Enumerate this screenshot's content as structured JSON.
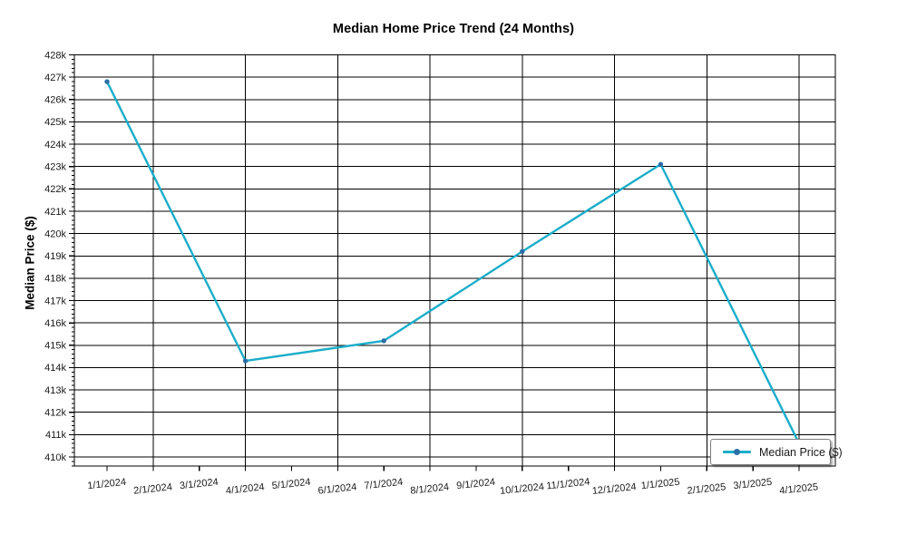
{
  "page": {
    "background": "#ffffff"
  },
  "chart_data": {
    "type": "line",
    "title": "Median Home Price Trend (24 Months)",
    "xlabel": "",
    "ylabel": "Median Price ($)",
    "grid": "on",
    "legend": {
      "label": "Median Price ($)",
      "position": "bottom-right"
    },
    "ylim_k": [
      409.6,
      428
    ],
    "ytick_step_k": 1,
    "y_tick_labels": [
      "428k",
      "427k",
      "426k",
      "425k",
      "424k",
      "423k",
      "422k",
      "421k",
      "420k",
      "419k",
      "418k",
      "417k",
      "416k",
      "415k",
      "414k",
      "413k",
      "412k",
      "411k",
      "410k"
    ],
    "x_tick_labels": [
      "1/1/2024",
      "2/1/2024",
      "3/1/2024",
      "4/1/2024",
      "5/1/2024",
      "6/1/2024",
      "7/1/2024",
      "8/1/2024",
      "9/1/2024",
      "10/1/2024",
      "11/1/2024",
      "12/1/2024",
      "1/1/2025",
      "2/1/2025",
      "3/1/2025",
      "4/1/2025"
    ],
    "vertical_gridline_indices": [
      1,
      3,
      5,
      7,
      9,
      11,
      13,
      15
    ],
    "colors": {
      "line": "#1badc9",
      "marker": "#2a6ea6",
      "grid": "#000000",
      "axis": "#000000",
      "tick_text": "#1a1a1a"
    },
    "series": [
      {
        "name": "Median Price ($)",
        "points": [
          {
            "x_label": "1/1/2024",
            "x_index": 0,
            "value_k": 426.8
          },
          {
            "x_label": "4/1/2024",
            "x_index": 3,
            "value_k": 414.3
          },
          {
            "x_label": "7/1/2024",
            "x_index": 6,
            "value_k": 415.2
          },
          {
            "x_label": "10/1/2024",
            "x_index": 9,
            "value_k": 419.2
          },
          {
            "x_label": "1/1/2025",
            "x_index": 12,
            "value_k": 423.1
          },
          {
            "x_label": "4/1/2025",
            "x_index": 15,
            "value_k": 410.6
          }
        ]
      }
    ]
  }
}
